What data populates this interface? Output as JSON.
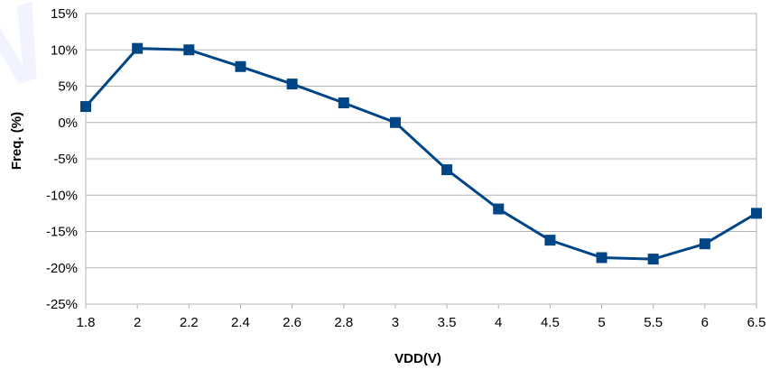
{
  "chart_data": {
    "type": "line",
    "title": "",
    "xlabel": "VDD(V)",
    "ylabel": "Freq. (%)",
    "categories": [
      "1.8",
      "2",
      "2.2",
      "2.4",
      "2.6",
      "2.8",
      "3",
      "3.5",
      "4",
      "4.5",
      "5",
      "5.5",
      "6",
      "6.5"
    ],
    "series": [
      {
        "values": [
          2.2,
          10.2,
          10.0,
          7.7,
          5.3,
          2.7,
          0.0,
          -6.5,
          -11.9,
          -16.2,
          -18.6,
          -18.8,
          -16.7,
          -12.5
        ],
        "color": "#004586",
        "marker": "square"
      }
    ],
    "ylim": [
      -25,
      15
    ],
    "yticks": [
      -25,
      -20,
      -15,
      -10,
      -5,
      0,
      5,
      10,
      15
    ],
    "ytick_labels": [
      "-25%",
      "-20%",
      "-15%",
      "-10%",
      "-5%",
      "0%",
      "5%",
      "10%",
      "15%"
    ],
    "grid": true,
    "legend": false
  }
}
